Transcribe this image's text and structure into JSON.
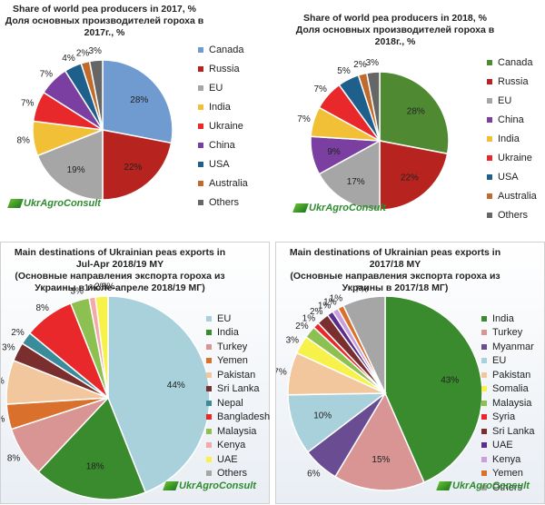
{
  "logo_text": "UkrAgroConsult",
  "chart_data": [
    {
      "type": "pie",
      "title_lines": [
        "Share of world pea producers in 2017, %",
        "Доля основных производителей гороха в",
        "2017г., %"
      ],
      "labels": [
        "Canada",
        "Russia",
        "EU",
        "India",
        "Ukraine",
        "China",
        "USA",
        "Australia",
        "Others"
      ],
      "values": [
        28,
        22,
        19,
        8,
        7,
        7,
        4,
        2,
        3
      ],
      "colors": [
        "#6f9bd1",
        "#b7241f",
        "#a6a6a6",
        "#f2c037",
        "#e8282b",
        "#7a3fa0",
        "#1f5f8b",
        "#c06a2b",
        "#666666"
      ],
      "legend_position": "right"
    },
    {
      "type": "pie",
      "title_lines": [
        "Share of world pea producers in 2018, %",
        "Доля основных производителей гороха в",
        "2018г., %"
      ],
      "labels": [
        "Canada",
        "Russia",
        "EU",
        "China",
        "India",
        "Ukraine",
        "USA",
        "Australia",
        "Others"
      ],
      "values": [
        28,
        22,
        17,
        9,
        7,
        7,
        5,
        2,
        3
      ],
      "colors": [
        "#4f8a32",
        "#b7241f",
        "#a6a6a6",
        "#7a3fa0",
        "#f2c037",
        "#e8282b",
        "#1f5f8b",
        "#c06a2b",
        "#666666"
      ],
      "legend_position": "right"
    },
    {
      "type": "pie",
      "title_lines": [
        "Main destinations of Ukrainian peas exports in",
        "Jul-Apr 2018/19 MY",
        "(Основные направления экспорта гороха из",
        "Украины в июле-апреле 2018/19 МГ)"
      ],
      "labels": [
        "EU",
        "India",
        "Turkey",
        "Yemen",
        "Pakistan",
        "Sri Lanka",
        "Nepal",
        "Bangladesh",
        "Malaysia",
        "Kenya",
        "UAE",
        "Others"
      ],
      "values": [
        44,
        18,
        8,
        4,
        7,
        3,
        2,
        8,
        3,
        1,
        2,
        0
      ],
      "colors": [
        "#a9d1dc",
        "#3a8a2e",
        "#d99494",
        "#d9702b",
        "#f3c79e",
        "#7b2e2e",
        "#3a8c9a",
        "#e8282b",
        "#8cc152",
        "#f5a8a8",
        "#f7f24a",
        "#a6a6a6"
      ],
      "legend_position": "right"
    },
    {
      "type": "pie",
      "title_lines": [
        "Main destinations of Ukrainian peas exports in",
        "2017/18 MY",
        "(Основные направления экспорта гороха из",
        "Украины в 2017/18 МГ)"
      ],
      "labels": [
        "India",
        "Turkey",
        "Myanmar",
        "EU",
        "Pakistan",
        "Somalia",
        "Malaysia",
        "Syria",
        "Sri Lanka",
        "UAE",
        "Kenya",
        "Yemen",
        "Others"
      ],
      "values": [
        43,
        15,
        6,
        10,
        7,
        3,
        2,
        1,
        2,
        1,
        1,
        1,
        7
      ],
      "colors": [
        "#3a8a2e",
        "#d99494",
        "#6a4c93",
        "#a9d1dc",
        "#f3c79e",
        "#f7f24a",
        "#8cc152",
        "#e8282b",
        "#7b2e2e",
        "#5b2d8e",
        "#c9a0dc",
        "#d9702b",
        "#a6a6a6"
      ],
      "legend_position": "right"
    }
  ]
}
